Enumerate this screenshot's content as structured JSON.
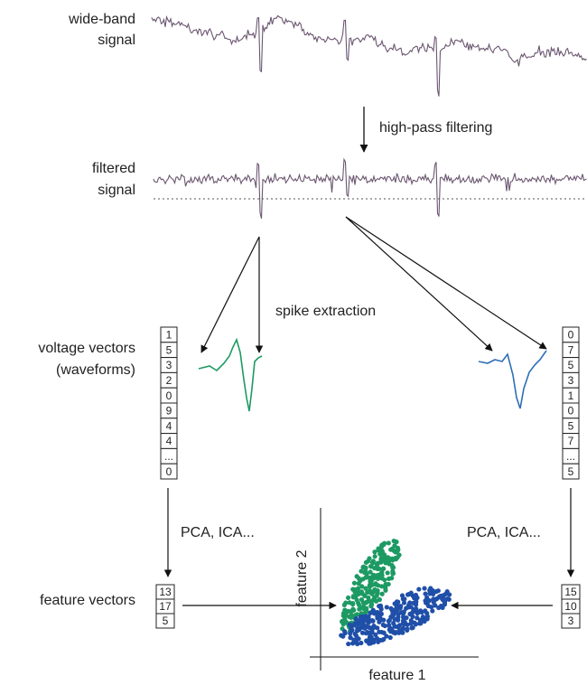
{
  "labels": {
    "wide_band_signal": [
      "wide-band",
      "signal"
    ],
    "high_pass_filtering": "high-pass filtering",
    "filtered_signal": [
      "filtered",
      "signal"
    ],
    "spike_extraction": "spike extraction",
    "voltage_vectors": [
      "voltage vectors",
      "(waveforms)"
    ],
    "pca_left": "PCA, ICA...",
    "pca_right": "PCA, ICA...",
    "feature_vectors": "feature vectors",
    "feature_1": "feature 1",
    "feature_2": "feature 2"
  },
  "left_vector": {
    "cells": [
      1,
      5,
      3,
      2,
      0,
      9,
      4,
      4,
      "...",
      0
    ]
  },
  "right_vector": {
    "cells": [
      0,
      7,
      5,
      3,
      1,
      0,
      5,
      7,
      "...",
      5
    ]
  },
  "left_features": {
    "cells": [
      13,
      17,
      5
    ]
  },
  "right_features": {
    "cells": [
      15,
      10,
      3
    ]
  }
}
